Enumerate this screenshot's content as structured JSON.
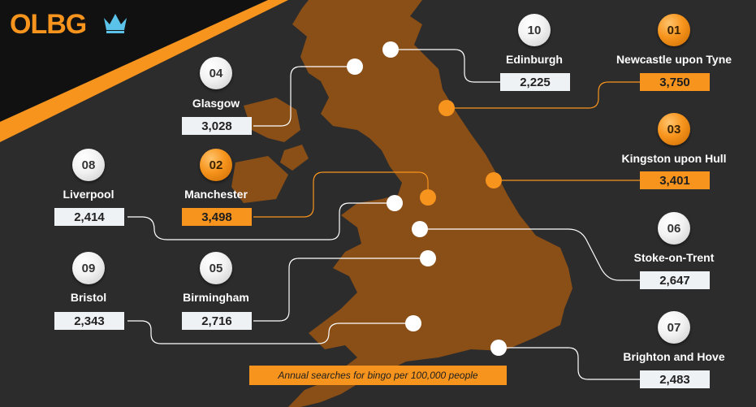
{
  "brand": {
    "logo_text": "OLBG",
    "crown_icon": "crown-icon"
  },
  "colors": {
    "background": "#2c2c2c",
    "land": "#8a4e17",
    "orange": "#f7941d",
    "white_box": "#eef2f5"
  },
  "note": "Annual searches for bingo per 100,000 people",
  "cities": [
    {
      "rank": "01",
      "name": "Newcastle upon Tyne",
      "value": "3,750",
      "highlight": true
    },
    {
      "rank": "02",
      "name": "Manchester",
      "value": "3,498",
      "highlight": true
    },
    {
      "rank": "03",
      "name": "Kingston upon Hull",
      "value": "3,401",
      "highlight": true
    },
    {
      "rank": "04",
      "name": "Glasgow",
      "value": "3,028",
      "highlight": false
    },
    {
      "rank": "05",
      "name": "Birmingham",
      "value": "2,716",
      "highlight": false
    },
    {
      "rank": "06",
      "name": "Stoke-on-Trent",
      "value": "2,647",
      "highlight": false
    },
    {
      "rank": "07",
      "name": "Brighton and Hove",
      "value": "2,483",
      "highlight": false
    },
    {
      "rank": "08",
      "name": "Liverpool",
      "value": "2,414",
      "highlight": false
    },
    {
      "rank": "09",
      "name": "Bristol",
      "value": "2,343",
      "highlight": false
    },
    {
      "rank": "10",
      "name": "Edinburgh",
      "value": "2,225",
      "highlight": false
    }
  ]
}
